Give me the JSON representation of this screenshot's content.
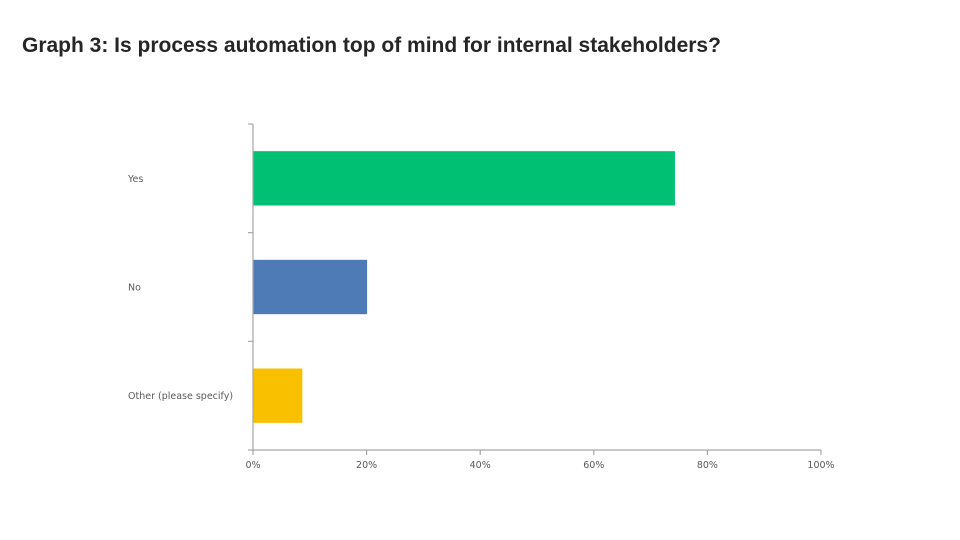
{
  "slide": {
    "title": "Graph 3: Is process automation top of mind for internal stakeholders?"
  },
  "chart_data": {
    "type": "bar",
    "orientation": "horizontal",
    "title": "",
    "xlabel": "",
    "ylabel": "",
    "categories": [
      "Yes",
      "No",
      "Other (please specify)"
    ],
    "values": [
      74.2,
      20.0,
      8.6
    ],
    "colors": [
      "#00c073",
      "#4e7ab6",
      "#f9c000"
    ],
    "xlim": [
      0,
      100
    ],
    "x_ticks": [
      "0%",
      "20%",
      "40%",
      "60%",
      "80%",
      "100%"
    ],
    "grid": false,
    "legend": "none"
  }
}
